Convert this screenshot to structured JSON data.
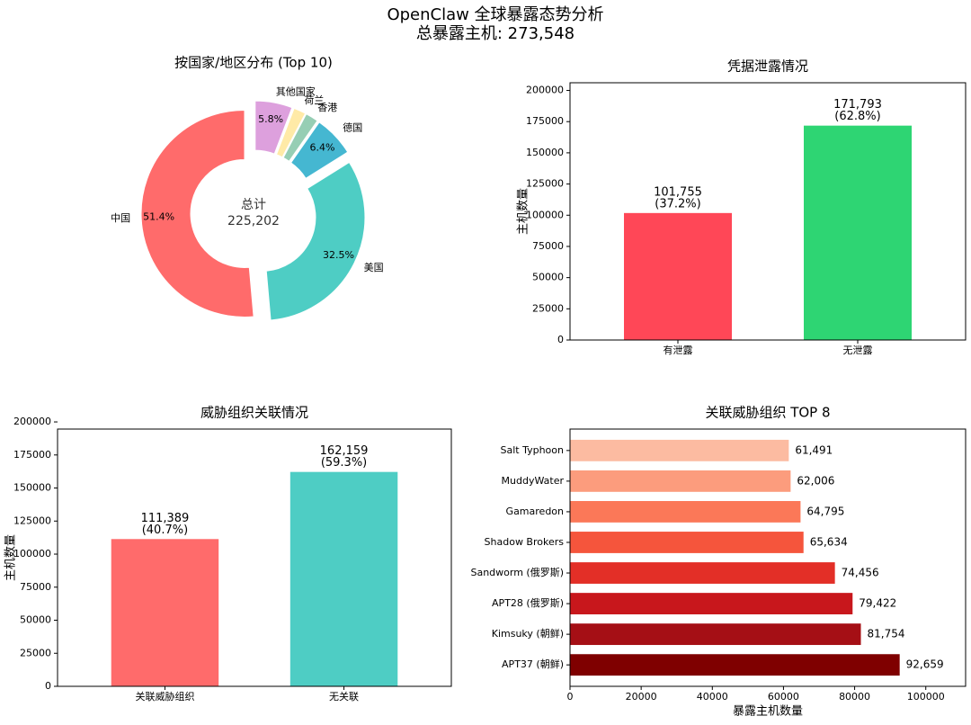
{
  "title": "OpenClaw 全球暴露态势分析",
  "subtitle": "总暴露主机: 273,548",
  "chart_data": [
    {
      "type": "pie",
      "title": "按国家/地区分布 (Top 10)",
      "categories": [
        "中国",
        "美国",
        "德国",
        "香港",
        "荷兰",
        "其他国家"
      ],
      "values": [
        51.4,
        32.5,
        6.4,
        2.0,
        1.9,
        5.8
      ],
      "value_labels": [
        "51.4%",
        "32.5%",
        "6.4%",
        null,
        null,
        "5.8%"
      ],
      "colors": [
        "#ff6b6b",
        "#4ecdc4",
        "#45b7d1",
        "#96ceb4",
        "#ffeaa7",
        "#dda0dd"
      ],
      "annotations": [
        "总计",
        "225,202"
      ]
    },
    {
      "type": "bar",
      "title": "凭据泄露情况",
      "ylabel": "主机数量",
      "categories": [
        "有泄露",
        "无泄露"
      ],
      "values": [
        101755,
        171793
      ],
      "value_labels": [
        "101,755\n(37.2%)",
        "171,793\n(62.8%)"
      ],
      "colors": [
        "#ff4757",
        "#2ed573"
      ],
      "ylim": [
        0,
        206152
      ],
      "yticks": [
        0,
        25000,
        50000,
        75000,
        100000,
        125000,
        150000,
        175000,
        200000
      ]
    },
    {
      "type": "bar",
      "title": "威胁组织关联情况",
      "ylabel": "主机数量",
      "categories": [
        "关联威胁组织",
        "无关联"
      ],
      "values": [
        111389,
        162159
      ],
      "value_labels": [
        "111,389\n(40.7%)",
        "162,159\n(59.3%)"
      ],
      "colors": [
        "#ff6b6b",
        "#4ecdc4"
      ],
      "ylim": [
        0,
        194591
      ],
      "yticks": [
        0,
        25000,
        50000,
        75000,
        100000,
        125000,
        150000,
        175000,
        200000
      ]
    },
    {
      "type": "barh",
      "title": "关联威胁组织 TOP 8",
      "xlabel": "暴露主机数量",
      "categories": [
        "APT37 (朝鲜)",
        "Kimsuky (朝鲜)",
        "APT28 (俄罗斯)",
        "Sandworm (俄罗斯)",
        "Shadow Brokers",
        "Gamaredon",
        "MuddyWater",
        "Salt Typhoon"
      ],
      "values": [
        92659,
        81754,
        79422,
        74456,
        65634,
        64795,
        62006,
        61491
      ],
      "value_labels": [
        "92,659",
        "81,754",
        "79,422",
        "74,456",
        "65,634",
        "64,795",
        "62,006",
        "61,491"
      ],
      "colors": [
        "#7f0000",
        "#a50f15",
        "#c8171c",
        "#e32f27",
        "#f5553c",
        "#fb7858",
        "#fc9c7d",
        "#fcbba1"
      ],
      "xlim": [
        0,
        111191
      ],
      "xticks": [
        0,
        20000,
        40000,
        60000,
        80000,
        100000
      ]
    }
  ]
}
